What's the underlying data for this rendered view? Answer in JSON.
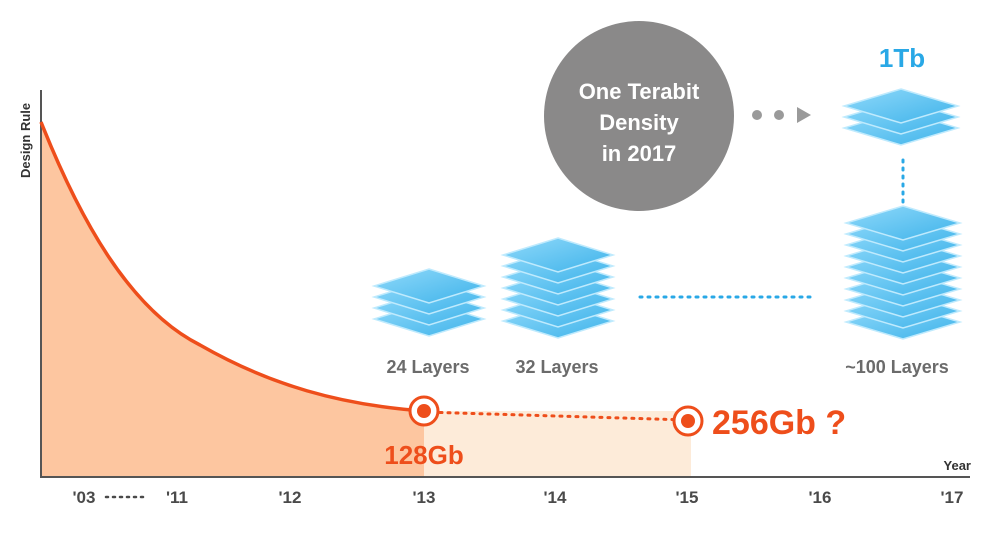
{
  "chart_data": {
    "type": "line",
    "ylabel": "Design Rule",
    "xlabel": "Year",
    "x_ticks": [
      "'03",
      "'11",
      "'12",
      "'13",
      "'14",
      "'15",
      "'16",
      "'17"
    ],
    "series": [
      {
        "values": [
          1.0,
          0.55,
          0.3,
          0.18
        ],
        "x": [
          "'03",
          "'11",
          "'12",
          "'13"
        ]
      }
    ],
    "milestones": [
      {
        "label": "128Gb",
        "x": "'13",
        "color": "#ee4e1b"
      },
      {
        "label": "256Gb ?",
        "x": "'15",
        "color": "#ee4e1b"
      }
    ],
    "layer_stacks": [
      {
        "label": "24 Layers",
        "x": "'13"
      },
      {
        "label": "32 Layers",
        "x": "'14"
      },
      {
        "label": "~100 Layers",
        "x": "'17"
      }
    ],
    "target": {
      "label": "1Tb",
      "x": "'17",
      "color": "#29a8e6"
    },
    "callout": {
      "lines": [
        "One Terabit",
        "Density",
        "in 2017"
      ],
      "color": "#8a8989"
    },
    "colors": {
      "line": "#ee4e1b",
      "fill_main": "#fdc6a0",
      "fill_light": "#fdebd9",
      "layer": "#5cc3f0",
      "axis": "#555555"
    }
  }
}
